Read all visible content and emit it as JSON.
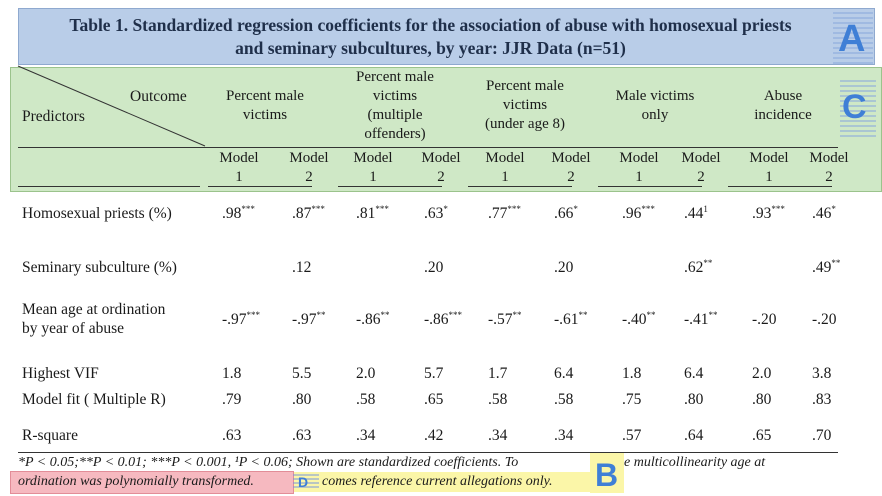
{
  "title": {
    "line1": "Table 1. Standardized regression coefficients for the association of abuse with homosexual priests",
    "line2": "and seminary subcultures, by year: JJR Data (n=51)"
  },
  "markers": {
    "a": "A",
    "b": "B",
    "c": "C",
    "d": "D"
  },
  "header": {
    "outcome_label": "Outcome",
    "predictors_label": "Predictors",
    "outcomes": [
      {
        "lines": [
          "Percent male",
          "victims"
        ]
      },
      {
        "lines": [
          "Percent male",
          "victims",
          "(multiple",
          "offenders)"
        ]
      },
      {
        "lines": [
          "Percent male",
          "victims",
          "(under age 8)"
        ]
      },
      {
        "lines": [
          "Male victims",
          "only"
        ]
      },
      {
        "lines": [
          "Abuse",
          "incidence"
        ]
      }
    ],
    "model_word": "Model",
    "model_nums": [
      "1",
      "2"
    ]
  },
  "rows": [
    {
      "label": [
        "Homosexual priests (%)"
      ],
      "values": [
        [
          ".98",
          "***"
        ],
        [
          ".87",
          "***"
        ],
        [
          ".81",
          "***"
        ],
        [
          ".63",
          "*"
        ],
        [
          ".77",
          "***"
        ],
        [
          ".66",
          "*"
        ],
        [
          ".96",
          "***"
        ],
        [
          ".44",
          "1"
        ],
        [
          ".93",
          "***"
        ],
        [
          ".46",
          "*"
        ]
      ]
    },
    {
      "label": [
        "Seminary subculture (%)"
      ],
      "values": [
        [
          "",
          ""
        ],
        [
          ".12",
          ""
        ],
        [
          "",
          ""
        ],
        [
          ".20",
          ""
        ],
        [
          "",
          ""
        ],
        [
          ".20",
          ""
        ],
        [
          "",
          ""
        ],
        [
          ".62",
          "**"
        ],
        [
          "",
          ""
        ],
        [
          ".49",
          "**"
        ]
      ]
    },
    {
      "label": [
        "Mean age at ordination",
        "by year of abuse"
      ],
      "values": [
        [
          "-.97",
          "***"
        ],
        [
          "-.97",
          "**"
        ],
        [
          "-.86",
          "**"
        ],
        [
          "-.86",
          "***"
        ],
        [
          "-.57",
          "**"
        ],
        [
          "-.61",
          "**"
        ],
        [
          "-.40",
          "**"
        ],
        [
          "-.41",
          "**"
        ],
        [
          "-.20",
          ""
        ],
        [
          "-.20",
          ""
        ]
      ]
    },
    {
      "label": [
        "Highest VIF"
      ],
      "values": [
        [
          "1.8",
          ""
        ],
        [
          "5.5",
          ""
        ],
        [
          "2.0",
          ""
        ],
        [
          "5.7",
          ""
        ],
        [
          "1.7",
          ""
        ],
        [
          "6.4",
          ""
        ],
        [
          "1.8",
          ""
        ],
        [
          "6.4",
          ""
        ],
        [
          "2.0",
          ""
        ],
        [
          "3.8",
          ""
        ]
      ]
    },
    {
      "label": [
        "Model fit ( Multiple R)"
      ],
      "values": [
        [
          ".79",
          ""
        ],
        [
          ".80",
          ""
        ],
        [
          ".58",
          ""
        ],
        [
          ".65",
          ""
        ],
        [
          ".58",
          ""
        ],
        [
          ".58",
          ""
        ],
        [
          ".75",
          ""
        ],
        [
          ".80",
          ""
        ],
        [
          ".80",
          ""
        ],
        [
          ".83",
          ""
        ]
      ]
    },
    {
      "label": [
        "R-square"
      ],
      "values": [
        [
          ".63",
          ""
        ],
        [
          ".63",
          ""
        ],
        [
          ".34",
          ""
        ],
        [
          ".42",
          ""
        ],
        [
          ".34",
          ""
        ],
        [
          ".34",
          ""
        ],
        [
          ".57",
          ""
        ],
        [
          ".64",
          ""
        ],
        [
          ".65",
          ""
        ],
        [
          ".70",
          ""
        ]
      ]
    }
  ],
  "footnote": {
    "line1_a": "*P < 0.05;**P < 0.01; ***P < 0.001, ¹P < 0.06;  Shown are standardized coefficients.  To",
    "line1_b": "e multicollinearity age at",
    "line2_a": "ordination was polynomially transformed.",
    "line2_b": "comes reference current allegations only."
  },
  "colors": {
    "title_bg": "#b9cde8",
    "header_bg": "#cfe8c6",
    "marker_blue": "#3f7fd6",
    "highlight_yellow": "#fbf6a8",
    "highlight_red": "#f6b9c0"
  }
}
